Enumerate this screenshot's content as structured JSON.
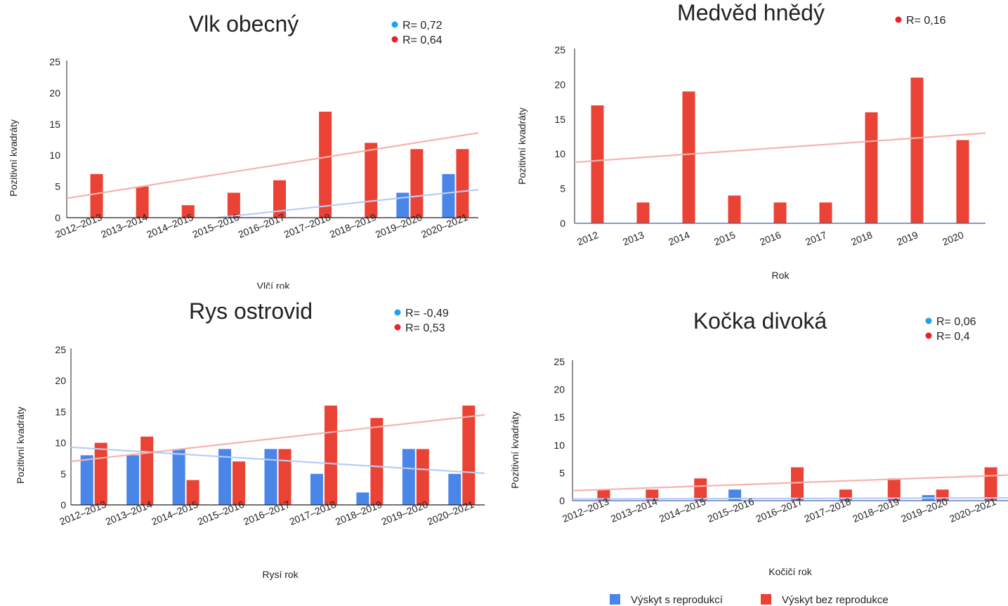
{
  "colors": {
    "blue": "#4a86e8",
    "red": "#ea4335",
    "legend_blue": "#1ca3ec",
    "legend_red": "#e8222a",
    "trend_blue": "#b7cdf5",
    "trend_red": "#f6b3ad",
    "axis": "#222222",
    "axis_blue": "#3c5fa8"
  },
  "footer_legend": [
    {
      "label": "Výskyt s reprodukcí",
      "color": "#4a86e8"
    },
    {
      "label": "Výskyt bez reprodukce",
      "color": "#ea4335"
    }
  ],
  "chart_data": [
    {
      "type": "bar",
      "title": "Vlk obecný",
      "xlabel": "Vlčí rok",
      "ylabel": "Pozitivní kvadráty",
      "ylim": [
        0,
        25
      ],
      "yticks": [
        0,
        5,
        10,
        15,
        20,
        25
      ],
      "categories": [
        "2012–2013",
        "2013–2014",
        "2014–2015",
        "2015–2016",
        "2016–2017",
        "2017–2018",
        "2018–2019",
        "2019–2020",
        "2020–2021"
      ],
      "series": [
        {
          "key": "blue",
          "values": [
            0,
            0,
            0,
            0,
            0,
            0,
            0,
            4,
            7
          ],
          "trend": [
            -2.6,
            4.5
          ]
        },
        {
          "key": "red",
          "values": [
            7,
            5,
            2,
            4,
            6,
            17,
            12,
            11,
            11
          ],
          "trend": [
            3.1,
            13.6
          ]
        }
      ],
      "legend": [
        {
          "key": "blue",
          "label": "R= 0,72"
        },
        {
          "key": "red",
          "label": "R= 0,64"
        }
      ],
      "legend_placement": "top-right",
      "grid": false
    },
    {
      "type": "bar",
      "title": "Medvěd hnědý",
      "xlabel": "Rok",
      "ylabel": "Pozitivní kvadráty",
      "ylim": [
        0,
        25
      ],
      "yticks": [
        0,
        5,
        10,
        15,
        20,
        25
      ],
      "categories": [
        "2012",
        "2013",
        "2014",
        "2015",
        "2016",
        "2017",
        "2018",
        "2019",
        "2020"
      ],
      "series": [
        {
          "key": "red",
          "values": [
            17,
            3,
            19,
            4,
            3,
            3,
            16,
            21,
            12
          ],
          "trend": [
            8.8,
            13.0
          ]
        }
      ],
      "legend": [
        {
          "key": "red",
          "label": "R= 0,16"
        }
      ],
      "legend_placement": "top-right",
      "grid": false
    },
    {
      "type": "bar",
      "title": "Rys ostrovid",
      "xlabel": "Rysí rok",
      "ylabel": "Pozitivní kvadráty",
      "ylim": [
        0,
        25
      ],
      "yticks": [
        0,
        5,
        10,
        15,
        20,
        25
      ],
      "categories": [
        "2012–2013",
        "2013–2014",
        "2014–2015",
        "2015–2016",
        "2016–2017",
        "2017–2018",
        "2018–2019",
        "2019–2020",
        "2020–2021"
      ],
      "series": [
        {
          "key": "blue",
          "values": [
            8,
            8,
            9,
            9,
            9,
            5,
            2,
            9,
            5
          ],
          "trend": [
            9.3,
            5.1
          ]
        },
        {
          "key": "red",
          "values": [
            10,
            11,
            4,
            7,
            9,
            16,
            14,
            9,
            16
          ],
          "trend": [
            7.0,
            14.5
          ]
        }
      ],
      "legend": [
        {
          "key": "blue",
          "label": "R= -0,49"
        },
        {
          "key": "red",
          "label": "R= 0,53"
        }
      ],
      "legend_placement": "top-right",
      "grid": false
    },
    {
      "type": "bar",
      "title": "Kočka divoká",
      "xlabel": "Kočičí rok",
      "ylabel": "Pozitivní kvadráty",
      "ylim": [
        0,
        25
      ],
      "yticks": [
        0,
        5,
        10,
        15,
        20,
        25
      ],
      "categories": [
        "2012–2013",
        "2013–2014",
        "2014–2015",
        "2015–2016",
        "2016–2017",
        "2017–2018",
        "2018–2019",
        "2019–2020",
        "2020–2021"
      ],
      "series": [
        {
          "key": "blue",
          "values": [
            0,
            0,
            0,
            2,
            0,
            0,
            0,
            1,
            0
          ],
          "trend": [
            0.3,
            0.5
          ]
        },
        {
          "key": "red",
          "values": [
            2,
            2,
            4,
            0,
            6,
            2,
            4,
            2,
            6
          ],
          "trend": [
            1.8,
            4.6
          ]
        }
      ],
      "legend": [
        {
          "key": "blue",
          "label": "R= 0,06"
        },
        {
          "key": "red",
          "label": "R= 0,4"
        }
      ],
      "legend_placement": "top-right",
      "grid": false
    }
  ]
}
